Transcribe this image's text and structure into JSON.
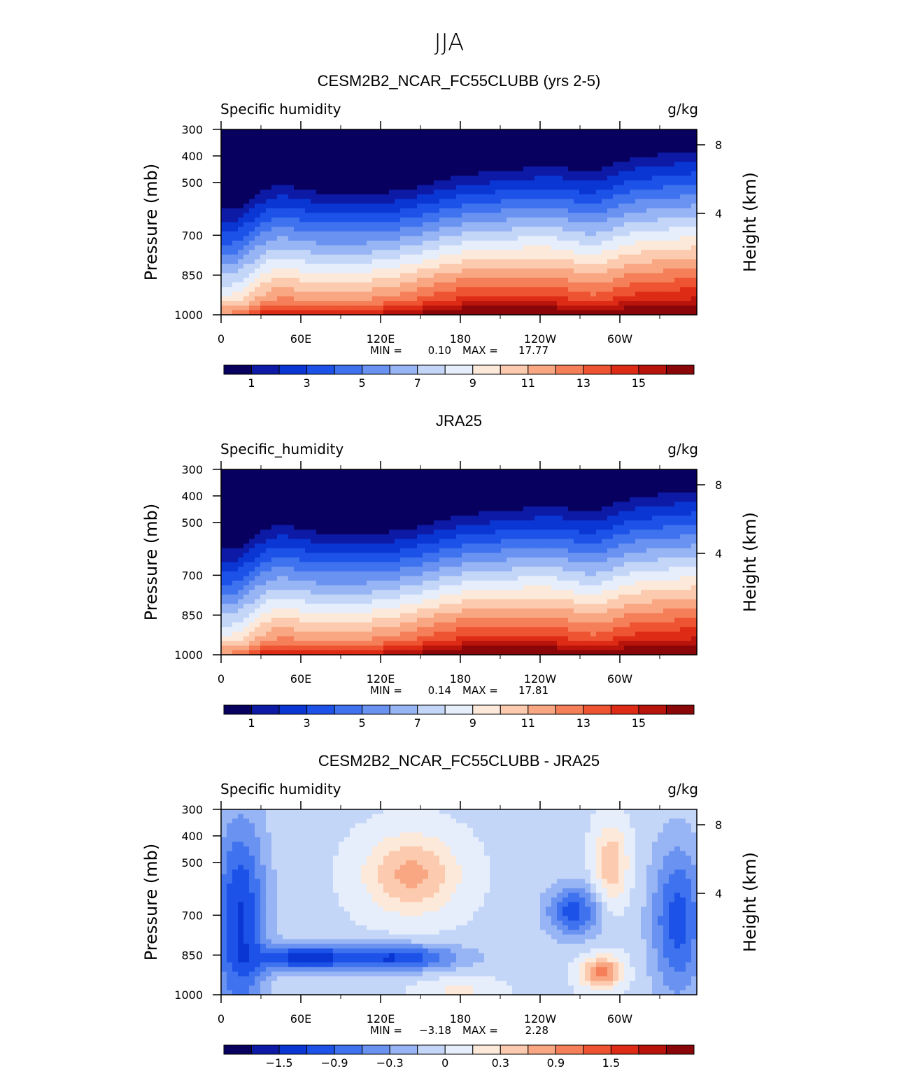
{
  "figure_title": "JJA",
  "chart_data": [
    {
      "type": "heatmap",
      "title": "CESM2B2_NCAR_FC55CLUBB (yrs 2-5)",
      "left_label": "Specific humidity",
      "right_label": "g/kg",
      "ylabel": "Pressure (mb)",
      "y2label": "Height (km)",
      "x_ticks": [
        "0",
        "60E",
        "120E",
        "180",
        "120W",
        "60W"
      ],
      "y_ticks": [
        "300",
        "400",
        "500",
        "700",
        "850",
        "1000"
      ],
      "y2_ticks": [
        "8",
        "4"
      ],
      "stats": {
        "min_label": "MIN =",
        "min": "0.10",
        "max_label": "MAX =",
        "max": "17.77"
      },
      "colorbar_ticks": [
        "1",
        "3",
        "5",
        "7",
        "9",
        "11",
        "13",
        "15"
      ],
      "field": "mean"
    },
    {
      "type": "heatmap",
      "title": "JRA25",
      "left_label": "Specific_humidity",
      "right_label": "g/kg",
      "ylabel": "Pressure (mb)",
      "y2label": "Height (km)",
      "x_ticks": [
        "0",
        "60E",
        "120E",
        "180",
        "120W",
        "60W"
      ],
      "y_ticks": [
        "300",
        "400",
        "500",
        "700",
        "850",
        "1000"
      ],
      "y2_ticks": [
        "8",
        "4"
      ],
      "stats": {
        "min_label": "MIN =",
        "min": "0.14",
        "max_label": "MAX =",
        "max": "17.81"
      },
      "colorbar_ticks": [
        "1",
        "3",
        "5",
        "7",
        "9",
        "11",
        "13",
        "15"
      ],
      "field": "mean"
    },
    {
      "type": "heatmap",
      "title": "CESM2B2_NCAR_FC55CLUBB - JRA25",
      "left_label": "Specific humidity",
      "right_label": "g/kg",
      "ylabel": "Pressure (mb)",
      "y2label": "Height (km)",
      "x_ticks": [
        "0",
        "60E",
        "120E",
        "180",
        "120W",
        "60W"
      ],
      "y_ticks": [
        "300",
        "400",
        "500",
        "700",
        "850",
        "1000"
      ],
      "y2_ticks": [
        "8",
        "4"
      ],
      "stats": {
        "min_label": "MIN =",
        "min": "−3.18",
        "max_label": "MAX =",
        "max": "2.28"
      },
      "colorbar_ticks": [
        "−1.5",
        "−0.9",
        "−0.3",
        "0",
        "0.3",
        "0.9",
        "1.5"
      ],
      "field": "diff"
    }
  ],
  "colors": {
    "palette": [
      "#08005f",
      "#0c1aa6",
      "#0a36d4",
      "#1c52e8",
      "#3f72ee",
      "#6a92f0",
      "#97b4f4",
      "#c4d6f8",
      "#e6eefc",
      "#fde9d9",
      "#fccaae",
      "#f9a783",
      "#f57f58",
      "#ee5432",
      "#dd2b16",
      "#b8140c",
      "#8a0608"
    ]
  }
}
